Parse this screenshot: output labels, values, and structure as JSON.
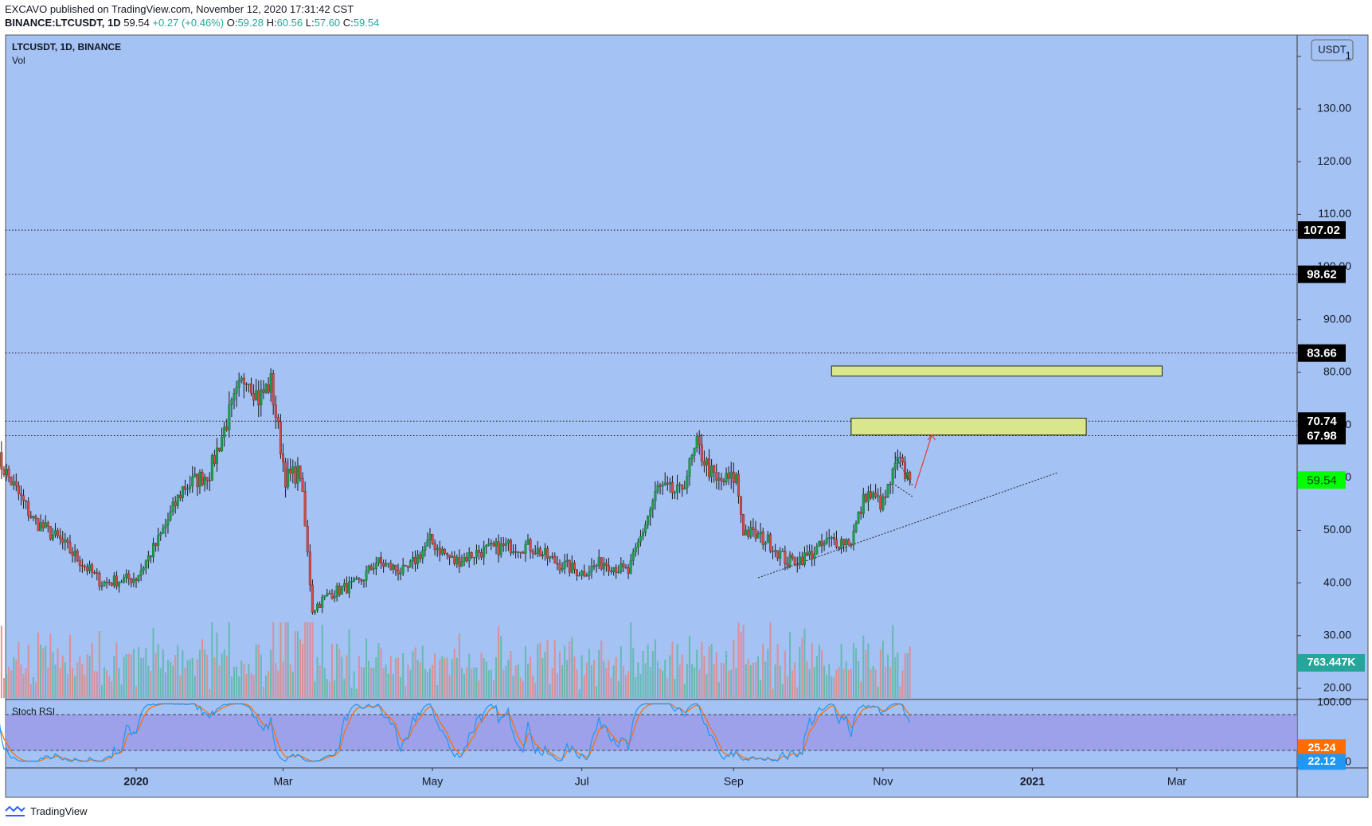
{
  "header": {
    "published_line": "EXCAVO published on TradingView.com, November 12, 2020 17:31:42 CST",
    "symbol_line": "BINANCE:LTCUSDT, 1D",
    "last": "59.54",
    "change": "+0.27 (+0.46%)",
    "o_label": "O:",
    "o_val": "59.28",
    "h_label": "H:",
    "h_val": "60.56",
    "l_label": "L:",
    "l_val": "57.60",
    "c_label": "C:",
    "c_val": "59.54"
  },
  "chart_data": {
    "type": "candlestick",
    "symbol_label": "LTCUSDT, 1D, BINANCE",
    "volume_label": "Vol",
    "currency_label": "USDT",
    "y_ticks": [
      "130.00",
      "120.00",
      "110.00",
      "100.00",
      "90.00",
      "80.00",
      "70.00",
      "60.00",
      "50.00",
      "40.00",
      "30.00",
      "20.00"
    ],
    "y_top_cut_label": "1",
    "x_labels": [
      "2020",
      "Mar",
      "May",
      "Jul",
      "Sep",
      "Nov",
      "2021",
      "Mar"
    ],
    "x_labels_bold": [
      "2020",
      "2021"
    ],
    "ylim": [
      16,
      140
    ],
    "horizontal_levels": [
      {
        "value": 107.02,
        "label": "107.02"
      },
      {
        "value": 98.62,
        "label": "98.62"
      },
      {
        "value": 83.66,
        "label": "83.66"
      },
      {
        "value": 70.74,
        "label": "70.74"
      },
      {
        "value": 67.98,
        "label": "67.98"
      }
    ],
    "last_price": {
      "value": 59.54,
      "label": "59.54",
      "color": "#00ff00"
    },
    "volume_last": {
      "label": "763.447K",
      "color": "#26a69a"
    },
    "target_zones": [
      {
        "low": 79.3,
        "high": 81.2,
        "x_start": "2020-10-11",
        "x_end": "2021-02-23"
      },
      {
        "low": 68.1,
        "high": 71.3,
        "x_start": "2020-10-19",
        "x_end": "2021-01-23"
      }
    ],
    "trendline": {
      "from": {
        "date": "2020-09-11",
        "price": 41.0
      },
      "to": {
        "date": "2021-01-11",
        "price": 60.9
      }
    },
    "projection_arrow": {
      "from": {
        "date": "2020-11-14",
        "price": 58.0
      },
      "to": {
        "date": "2020-11-21",
        "price": 68.2
      }
    },
    "ohlc_anchors": [
      [
        "2019-11-05",
        64
      ],
      [
        "2019-11-20",
        52
      ],
      [
        "2019-12-01",
        48
      ],
      [
        "2019-12-18",
        40
      ],
      [
        "2020-01-01",
        41
      ],
      [
        "2020-01-10",
        48
      ],
      [
        "2020-01-20",
        58
      ],
      [
        "2020-01-31",
        61
      ],
      [
        "2020-02-08",
        72
      ],
      [
        "2020-02-15",
        80
      ],
      [
        "2020-02-20",
        75
      ],
      [
        "2020-02-25",
        78
      ],
      [
        "2020-03-02",
        60
      ],
      [
        "2020-03-08",
        61
      ],
      [
        "2020-03-13",
        35
      ],
      [
        "2020-03-20",
        38
      ],
      [
        "2020-04-01",
        40
      ],
      [
        "2020-04-08",
        44
      ],
      [
        "2020-04-20",
        42
      ],
      [
        "2020-04-30",
        48
      ],
      [
        "2020-05-10",
        44
      ],
      [
        "2020-05-20",
        46
      ],
      [
        "2020-06-01",
        47
      ],
      [
        "2020-06-10",
        47
      ],
      [
        "2020-06-20",
        44
      ],
      [
        "2020-07-01",
        42
      ],
      [
        "2020-07-10",
        44
      ],
      [
        "2020-07-20",
        42
      ],
      [
        "2020-08-01",
        58
      ],
      [
        "2020-08-10",
        57
      ],
      [
        "2020-08-17",
        66
      ],
      [
        "2020-08-25",
        59
      ],
      [
        "2020-09-02",
        60
      ],
      [
        "2020-09-05",
        50
      ],
      [
        "2020-09-15",
        48
      ],
      [
        "2020-09-23",
        44
      ],
      [
        "2020-10-01",
        45
      ],
      [
        "2020-10-10",
        48
      ],
      [
        "2020-10-19",
        48
      ],
      [
        "2020-10-25",
        57
      ],
      [
        "2020-11-01",
        55
      ],
      [
        "2020-11-07",
        63
      ],
      [
        "2020-11-12",
        59.54
      ]
    ],
    "volume_scale_note": "relative",
    "stoch_rsi": {
      "label": "Stoch RSI",
      "y_ticks": [
        "100.00",
        "0.00"
      ],
      "band": [
        20,
        80
      ],
      "k_label": "25.24",
      "k_color": "#ff6d00",
      "d_label": "22.12",
      "d_color": "#2196f3"
    }
  },
  "footer": {
    "brand": "TradingView"
  }
}
